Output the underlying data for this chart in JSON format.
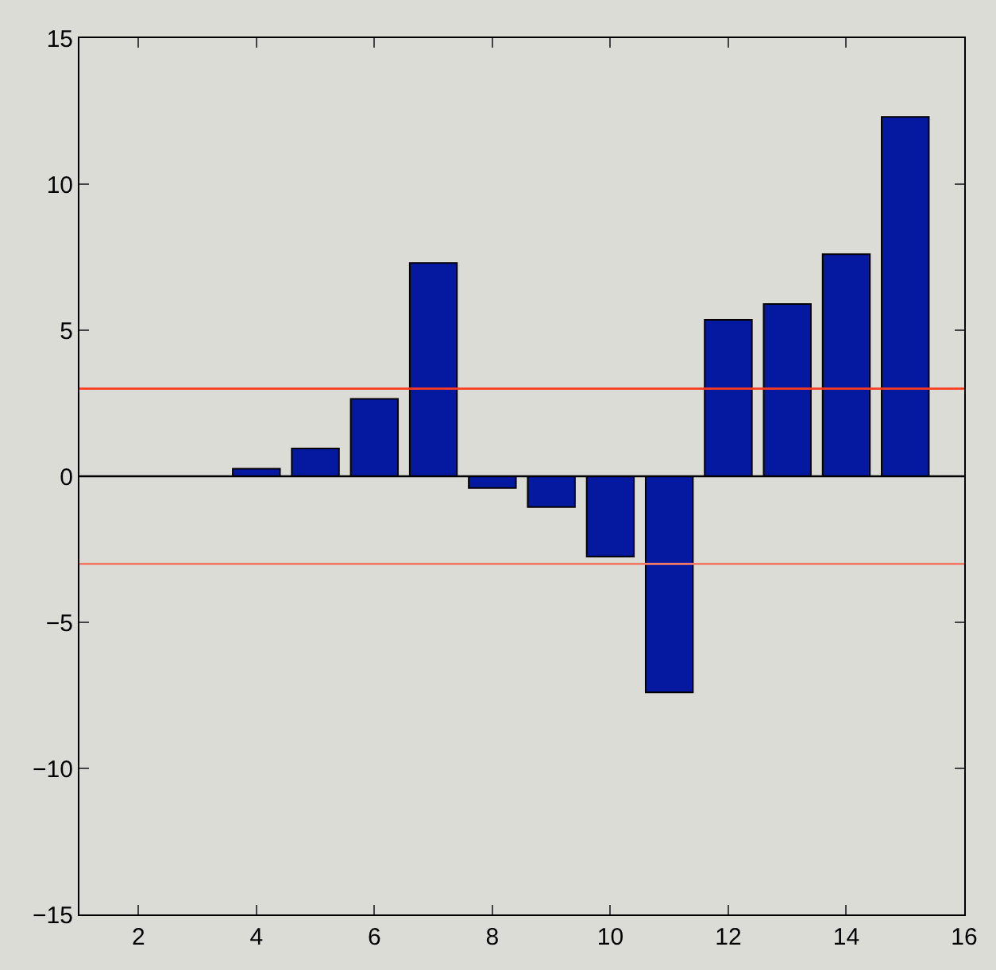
{
  "chart_data": {
    "type": "bar",
    "x": [
      4,
      5,
      6,
      7,
      8,
      9,
      10,
      11,
      12,
      13,
      14,
      15
    ],
    "values": [
      0.26,
      0.95,
      2.65,
      7.3,
      -0.4,
      -1.05,
      -2.75,
      -7.4,
      5.35,
      5.9,
      7.6,
      12.3
    ],
    "color": "#0419a0",
    "xlim": [
      1,
      16
    ],
    "xticks": [
      2,
      4,
      6,
      8,
      10,
      12,
      14,
      16
    ],
    "ylim": [
      -15,
      15
    ],
    "yticks": [
      -15,
      -10,
      -5,
      0,
      5,
      10,
      15
    ],
    "ref_lines": [
      {
        "axis": "y",
        "value": 0,
        "color": "#000000"
      },
      {
        "axis": "y",
        "value": 3,
        "color": "#ff3b22"
      },
      {
        "axis": "y",
        "value": -3,
        "color": "#f47a68"
      }
    ],
    "grid": false
  }
}
